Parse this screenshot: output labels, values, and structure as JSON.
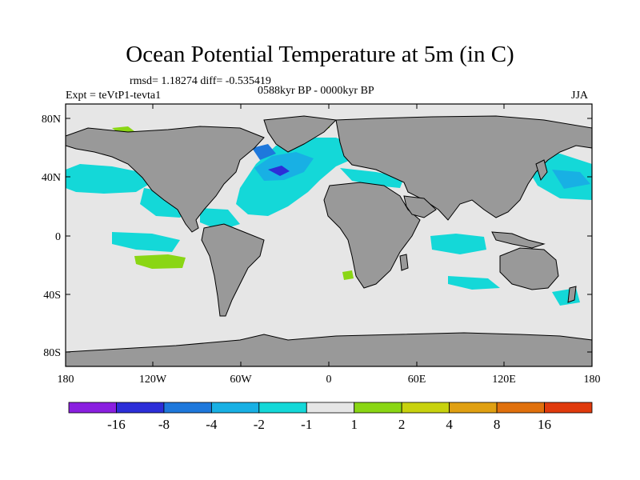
{
  "title": "Ocean Potential Temperature at 5m (in C)",
  "stats": "rmsd= 1.18274 diff= -0.535419",
  "experiment": "Expt = teVtP1-tevta1",
  "period": "0588kyr BP - 0000kyr BP",
  "season": "JJA",
  "lat_ticks": [
    "80N",
    "40N",
    "0",
    "40S",
    "80S"
  ],
  "lon_ticks": [
    "180",
    "120W",
    "60W",
    "0",
    "60E",
    "120E",
    "180"
  ],
  "colorbar": {
    "colors": [
      "#8a1fe0",
      "#2c2ed8",
      "#1e78dc",
      "#18b0e4",
      "#14d8d8",
      "#e6e6e6",
      "#8ad614",
      "#c8d20e",
      "#e0a012",
      "#e0700c",
      "#e03a0c"
    ],
    "labels": [
      "-16",
      "-8",
      "-4",
      "-2",
      "-1",
      "1",
      "2",
      "4",
      "8",
      "16"
    ]
  },
  "colors": {
    "ocean_neutral": "#e6e6e6",
    "land": "#999999",
    "cool_light": "#14d8d8",
    "cool_mid": "#18b0e4",
    "cool_dark": "#1e78dc",
    "cool_deep": "#2c2ed8",
    "warm_light": "#8ad614"
  }
}
